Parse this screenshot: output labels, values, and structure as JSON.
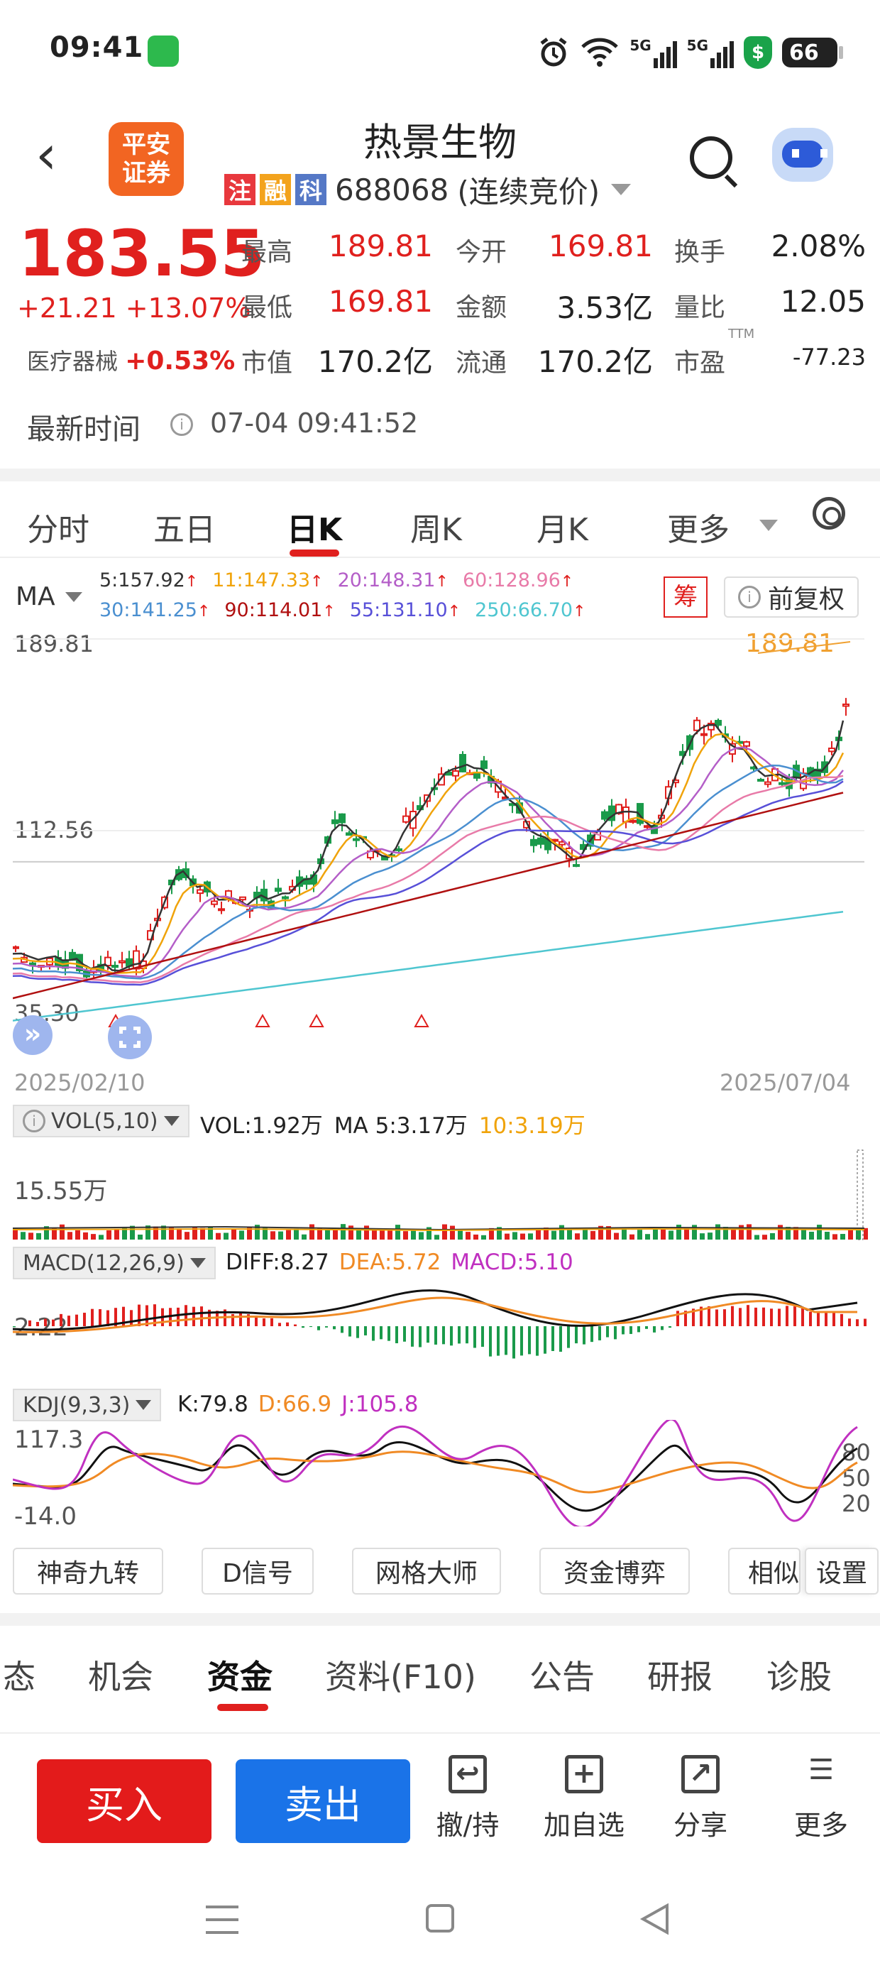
{
  "status": {
    "time": "09:41",
    "network1": "5G",
    "network2": "5G",
    "battery": "66"
  },
  "header": {
    "title": "热景生物",
    "logo": "平安\n证券",
    "tags": [
      "注",
      "融",
      "科"
    ],
    "code": "688068",
    "mode": "(连续竞价)"
  },
  "quote": {
    "price": "183.55",
    "change": "+21.21",
    "change_pct": "+13.07%",
    "sector_name": "医疗器械",
    "sector_pct": "+0.53%",
    "rows": [
      [
        {
          "l": "最高",
          "v": "189.81",
          "up": true
        },
        {
          "l": "今开",
          "v": "169.81",
          "up": true
        },
        {
          "l": "换手",
          "v": "2.08%",
          "up": false
        }
      ],
      [
        {
          "l": "最低",
          "v": "169.81",
          "up": true
        },
        {
          "l": "金额",
          "v": "3.53亿",
          "up": false
        },
        {
          "l": "量比",
          "v": "12.05",
          "up": false
        }
      ],
      [
        {
          "l": "市值",
          "v": "170.2亿",
          "up": false
        },
        {
          "l": "流通",
          "v": "170.2亿",
          "up": false
        },
        {
          "l": "市盈",
          "v": "-77.23",
          "up": false,
          "sup": "TTM"
        }
      ]
    ]
  },
  "time_row": {
    "label": "最新时间",
    "value": "07-04 09:41:52"
  },
  "ktabs": [
    "分时",
    "五日",
    "日K",
    "周K",
    "月K",
    "更多"
  ],
  "ma_legend": {
    "title": "MA",
    "row1": [
      {
        "t": "5:157.92",
        "c": "#333333"
      },
      {
        "t": "11:147.33",
        "c": "#f0a30a"
      },
      {
        "t": "20:148.31",
        "c": "#b45ec8"
      },
      {
        "t": "60:128.96",
        "c": "#e87aa8"
      }
    ],
    "row2": [
      {
        "t": "30:141.25",
        "c": "#4a8fd0"
      },
      {
        "t": "90:114.01",
        "c": "#b01010"
      },
      {
        "t": "55:131.10",
        "c": "#5850d8"
      },
      {
        "t": "250:66.70",
        "c": "#4fc6d0"
      }
    ],
    "chou": "筹",
    "fq": "前复权"
  },
  "chart_data": {
    "type": "candlestick",
    "y_top": "189.81",
    "y_mid": "112.56",
    "y_bottom": "35.30",
    "x_start": "2025/02/10",
    "x_end": "2025/07/04",
    "high_marker": "189.81",
    "ylim": [
      35.3,
      189.81
    ]
  },
  "vol": {
    "btn": "VOL(5,10)",
    "vol": "VOL:1.92万",
    "ma5": "MA 5:3.17万",
    "ma10": "10:3.19万",
    "axis": "15.55万"
  },
  "macd": {
    "btn": "MACD(12,26,9)",
    "diff": "DIFF:8.27",
    "dea": "DEA:5.72",
    "macd": "MACD:5.10",
    "axis": "2.22"
  },
  "kdj": {
    "btn": "KDJ(9,3,3)",
    "k": "K:79.8",
    "d": "D:66.9",
    "j": "J:105.8",
    "axis_top": "117.3",
    "axis_bottom": "-14.0",
    "levels": [
      "80",
      "50",
      "20"
    ]
  },
  "tools": [
    "神奇九转",
    "D信号",
    "网格大师",
    "资金博弈",
    "相似",
    "设置"
  ],
  "btabs": [
    "态",
    "机会",
    "资金",
    "资料(F10)",
    "公告",
    "研报",
    "诊股"
  ],
  "actions": {
    "buy": "买入",
    "sell": "卖出",
    "items": [
      "撤/持",
      "加自选",
      "分享",
      "更多"
    ]
  }
}
